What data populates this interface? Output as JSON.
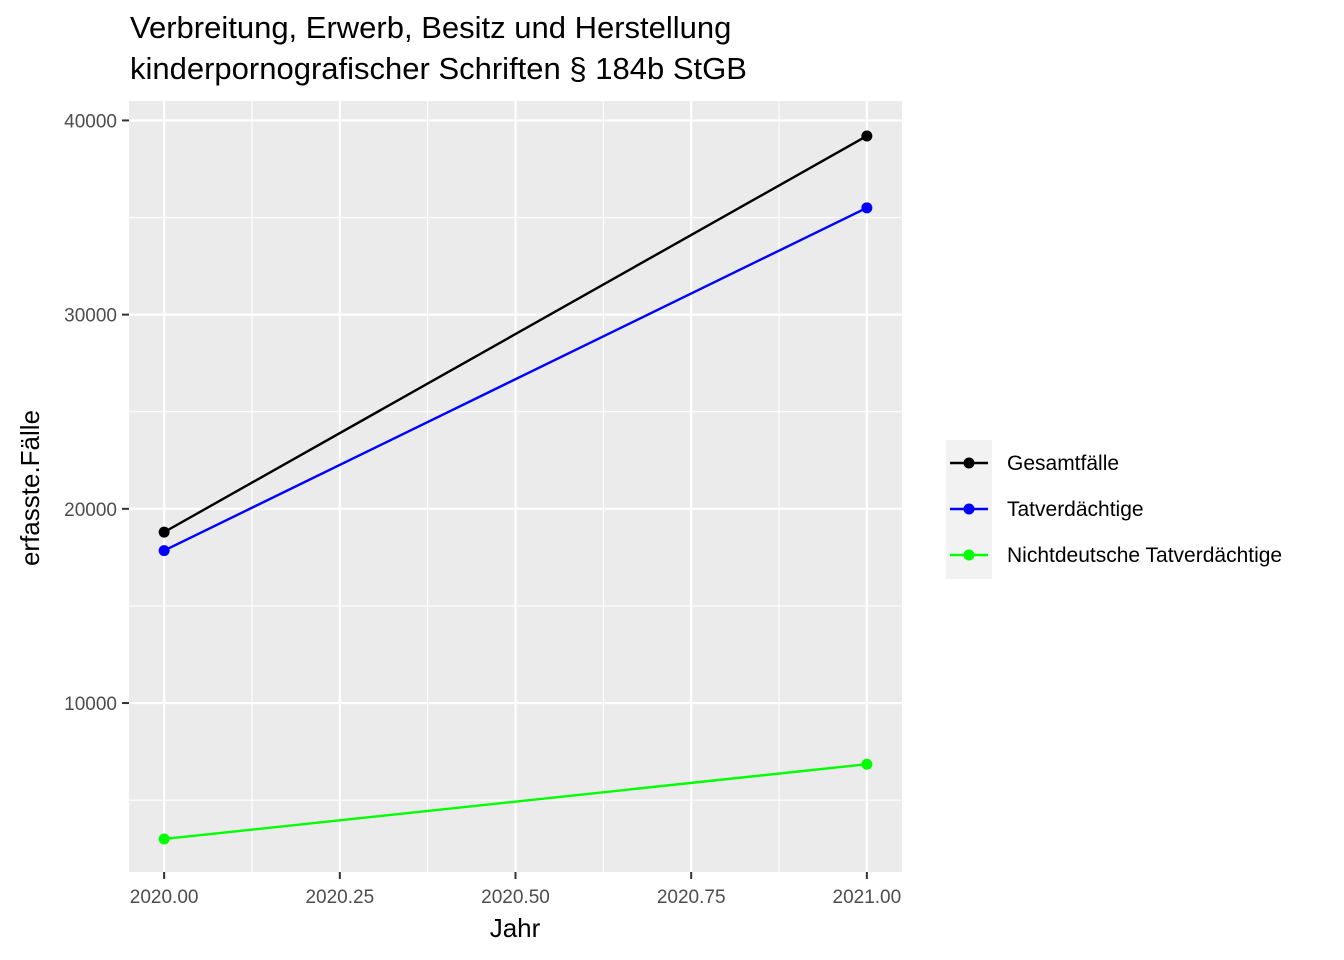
{
  "chart_data": {
    "type": "line",
    "title_lines": [
      "Verbreitung, Erwerb, Besitz und Herstellung",
      "kinderpornografischer Schriften § 184b StGB"
    ],
    "xlabel": "Jahr",
    "ylabel": "erfasste.Fälle",
    "x": [
      2020,
      2021
    ],
    "xlim": [
      1999.95,
      2021.05
    ],
    "ylim": [
      1300,
      41000
    ],
    "xticks": [
      2020.0,
      2020.25,
      2020.5,
      2020.75,
      2021.0
    ],
    "xtick_labels": [
      "2020.00",
      "2020.25",
      "2020.50",
      "2020.75",
      "2021.00"
    ],
    "yticks": [
      10000,
      20000,
      30000,
      40000
    ],
    "ytick_labels": [
      "10000",
      "20000",
      "30000",
      "40000"
    ],
    "grid": true,
    "legend_position": "right",
    "panel_color": "#ebebeb",
    "series": [
      {
        "name": "Gesamtfälle",
        "color": "#000000",
        "values": [
          18800,
          39200
        ]
      },
      {
        "name": "Tatverdächtige",
        "color": "#0000ff",
        "values": [
          17850,
          35500
        ]
      },
      {
        "name": "Nichtdeutsche Tatverdächtige",
        "color": "#00ff00",
        "values": [
          3000,
          6850
        ]
      }
    ]
  }
}
